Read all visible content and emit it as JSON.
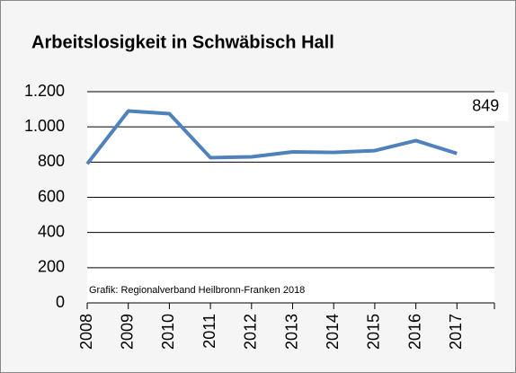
{
  "chart_data": {
    "type": "line",
    "title": "Arbeitslosigkeit in Schwäbisch Hall",
    "annotation": "Grafik: Regionalverband Heilbronn-Franken 2018",
    "categories": [
      "2008",
      "2009",
      "2010",
      "2011",
      "2012",
      "2013",
      "2014",
      "2015",
      "2016",
      "2017"
    ],
    "series": [
      {
        "name": "Arbeitslosigkeit",
        "color": "#4f81bd",
        "values": [
          790,
          1090,
          1075,
          825,
          830,
          858,
          855,
          865,
          922,
          849
        ]
      }
    ],
    "labeled_point": 9,
    "ylim": [
      0,
      1200
    ],
    "yticks": [
      0,
      200,
      400,
      600,
      800,
      {
        "value": 1000,
        "label": "1.000"
      },
      {
        "value": 1200,
        "label": "1.200"
      }
    ],
    "grid": true
  }
}
